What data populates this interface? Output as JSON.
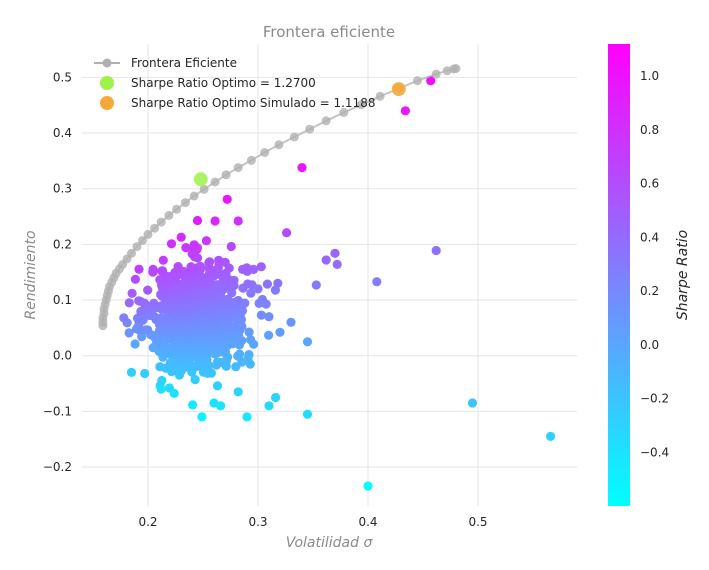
{
  "chart_data": {
    "type": "scatter",
    "title": "Frontera eficiente",
    "xlabel": "Volatilidad σ",
    "ylabel": "Rendimiento",
    "xlim": [
      0.14,
      0.59
    ],
    "ylim": [
      -0.27,
      0.56
    ],
    "xticks": [
      {
        "v": 0.2,
        "label": "0.2"
      },
      {
        "v": 0.3,
        "label": "0.3"
      },
      {
        "v": 0.4,
        "label": "0.4"
      },
      {
        "v": 0.5,
        "label": "0.5"
      }
    ],
    "yticks": [
      {
        "v": -0.2,
        "label": "−0.2"
      },
      {
        "v": -0.1,
        "label": "−0.1"
      },
      {
        "v": 0.0,
        "label": "0.0"
      },
      {
        "v": 0.1,
        "label": "0.1"
      },
      {
        "v": 0.2,
        "label": "0.2"
      },
      {
        "v": 0.3,
        "label": "0.3"
      },
      {
        "v": 0.4,
        "label": "0.4"
      },
      {
        "v": 0.5,
        "label": "0.5"
      }
    ],
    "grid": true,
    "legend_position": "top-left",
    "frontier": {
      "name": "Frontera Eficiente",
      "color": "#b0b0b0",
      "x": [
        0.159,
        0.159,
        0.159,
        0.16,
        0.16,
        0.161,
        0.162,
        0.163,
        0.164,
        0.165,
        0.167,
        0.169,
        0.171,
        0.174,
        0.177,
        0.181,
        0.185,
        0.19,
        0.195,
        0.2,
        0.206,
        0.212,
        0.219,
        0.226,
        0.234,
        0.242,
        0.251,
        0.261,
        0.271,
        0.282,
        0.294,
        0.306,
        0.319,
        0.333,
        0.347,
        0.362,
        0.378,
        0.394,
        0.411,
        0.428,
        0.445,
        0.462,
        0.472,
        0.478,
        0.48
      ],
      "y": [
        0.054,
        0.06,
        0.068,
        0.076,
        0.084,
        0.092,
        0.1,
        0.108,
        0.116,
        0.124,
        0.132,
        0.14,
        0.148,
        0.156,
        0.164,
        0.174,
        0.184,
        0.196,
        0.207,
        0.218,
        0.229,
        0.24,
        0.252,
        0.263,
        0.275,
        0.287,
        0.299,
        0.312,
        0.325,
        0.338,
        0.351,
        0.365,
        0.379,
        0.393,
        0.407,
        0.422,
        0.437,
        0.451,
        0.466,
        0.48,
        0.494,
        0.506,
        0.512,
        0.515,
        0.516
      ]
    },
    "optimal": {
      "name": "Sharpe Ratio Optimo = 1.2700",
      "x": 0.248,
      "y": 0.317,
      "color": "#9ef24a"
    },
    "optimal_simulated": {
      "name": "Sharpe Ratio Optimo Simulado = 1.1188",
      "x": 0.428,
      "y": 0.479,
      "color": "#f5a83a"
    },
    "colorbar": {
      "label": "Sharpe Ratio",
      "range": [
        -0.6,
        1.12
      ],
      "ticks": [
        {
          "v": -0.4,
          "label": "−0.4"
        },
        {
          "v": -0.2,
          "label": "−0.2"
        },
        {
          "v": 0.0,
          "label": "0.0"
        },
        {
          "v": 0.2,
          "label": "0.2"
        },
        {
          "v": 0.4,
          "label": "0.4"
        },
        {
          "v": 0.6,
          "label": "0.6"
        },
        {
          "v": 0.8,
          "label": "0.8"
        },
        {
          "v": 1.0,
          "label": "1.0"
        }
      ],
      "color_low": "#00ffff",
      "color_high": "#ff00ff"
    },
    "scatter_cloud": {
      "center_x": 0.245,
      "center_y": 0.07,
      "spread_x": 0.022,
      "spread_y": 0.048,
      "count": 900
    },
    "outliers": [
      {
        "x": 0.457,
        "y": 0.494
      },
      {
        "x": 0.434,
        "y": 0.44
      },
      {
        "x": 0.34,
        "y": 0.338
      },
      {
        "x": 0.272,
        "y": 0.281
      },
      {
        "x": 0.462,
        "y": 0.189
      },
      {
        "x": 0.37,
        "y": 0.184
      },
      {
        "x": 0.372,
        "y": 0.164
      },
      {
        "x": 0.362,
        "y": 0.172
      },
      {
        "x": 0.326,
        "y": 0.221
      },
      {
        "x": 0.245,
        "y": 0.243
      },
      {
        "x": 0.261,
        "y": 0.242
      },
      {
        "x": 0.282,
        "y": 0.242
      },
      {
        "x": 0.408,
        "y": 0.133
      },
      {
        "x": 0.353,
        "y": 0.127
      },
      {
        "x": 0.304,
        "y": 0.101
      },
      {
        "x": 0.345,
        "y": 0.025
      },
      {
        "x": 0.185,
        "y": -0.03
      },
      {
        "x": 0.197,
        "y": -0.032
      },
      {
        "x": 0.29,
        "y": -0.11
      },
      {
        "x": 0.249,
        "y": -0.11
      },
      {
        "x": 0.345,
        "y": -0.105
      },
      {
        "x": 0.495,
        "y": -0.085
      },
      {
        "x": 0.566,
        "y": -0.145
      },
      {
        "x": 0.4,
        "y": -0.234
      },
      {
        "x": 0.316,
        "y": -0.075
      },
      {
        "x": 0.31,
        "y": -0.09
      },
      {
        "x": 0.282,
        "y": -0.065
      },
      {
        "x": 0.26,
        "y": -0.085
      },
      {
        "x": 0.266,
        "y": -0.09
      },
      {
        "x": 0.212,
        "y": -0.06
      },
      {
        "x": 0.32,
        "y": 0.042
      },
      {
        "x": 0.293,
        "y": -0.015
      },
      {
        "x": 0.31,
        "y": 0.07
      },
      {
        "x": 0.33,
        "y": 0.06
      },
      {
        "x": 0.296,
        "y": 0.155
      },
      {
        "x": 0.286,
        "y": 0.155
      },
      {
        "x": 0.303,
        "y": 0.16
      },
      {
        "x": 0.318,
        "y": 0.13
      },
      {
        "x": 0.3,
        "y": 0.12
      },
      {
        "x": 0.183,
        "y": 0.095
      },
      {
        "x": 0.178,
        "y": 0.068
      }
    ]
  }
}
